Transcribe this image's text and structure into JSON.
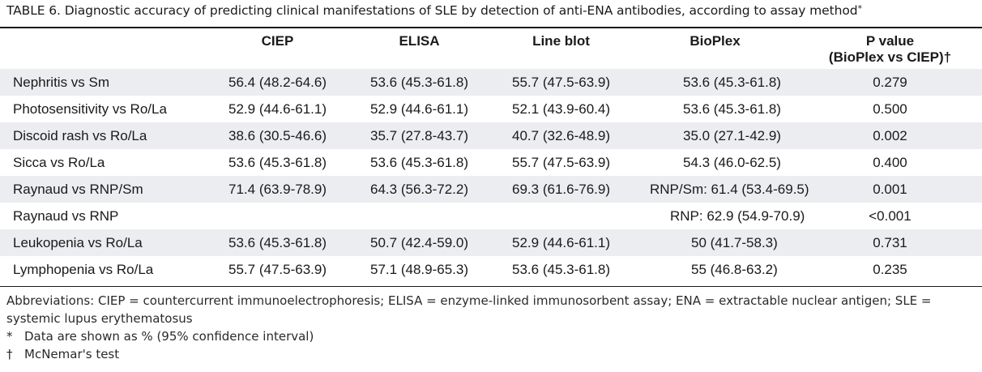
{
  "caption": {
    "label": "TABLE 6.",
    "text": "Diagnostic accuracy of predicting clinical manifestations of SLE by detection of anti-ENA antibodies, according to assay method",
    "mark": "*"
  },
  "table": {
    "headers": {
      "row_label": "",
      "ciep": "CIEP",
      "elisa": "ELISA",
      "line_blot": "Line blot",
      "bioplex": "BioPlex",
      "p_value_line1": "P value",
      "p_value_line2": "(BioPlex vs CIEP)†"
    },
    "rows": [
      {
        "label": "Nephritis vs Sm",
        "ciep": "56.4 (48.2-64.6)",
        "elisa": "53.6 (45.3-61.8)",
        "line_blot": "55.7 (47.5-63.9)",
        "bioplex": "53.6 (45.3-61.8)",
        "p": "0.279"
      },
      {
        "label": "Photosensitivity vs Ro/La",
        "ciep": "52.9 (44.6-61.1)",
        "elisa": "52.9 (44.6-61.1)",
        "line_blot": "52.1 (43.9-60.4)",
        "bioplex": "53.6 (45.3-61.8)",
        "p": "0.500"
      },
      {
        "label": "Discoid rash vs Ro/La",
        "ciep": "38.6 (30.5-46.6)",
        "elisa": "35.7 (27.8-43.7)",
        "line_blot": "40.7 (32.6-48.9)",
        "bioplex": "35.0 (27.1-42.9)",
        "p": "0.002"
      },
      {
        "label": "Sicca vs Ro/La",
        "ciep": "53.6 (45.3-61.8)",
        "elisa": "53.6 (45.3-61.8)",
        "line_blot": "55.7 (47.5-63.9)",
        "bioplex": "54.3 (46.0-62.5)",
        "p": "0.400"
      },
      {
        "label": "Raynaud vs RNP/Sm",
        "ciep": "71.4 (63.9-78.9)",
        "elisa": "64.3 (56.3-72.2)",
        "line_blot": "69.3 (61.6-76.9)",
        "bioplex": "RNP/Sm: 61.4 (53.4-69.5)",
        "p": "0.001"
      },
      {
        "label": "Raynaud vs RNP",
        "ciep": "",
        "elisa": "",
        "line_blot": "",
        "bioplex": "RNP: 62.9 (54.9-70.9)",
        "p": "<0.001"
      },
      {
        "label": "Leukopenia vs Ro/La",
        "ciep": "53.6 (45.3-61.8)",
        "elisa": "50.7 (42.4-59.0)",
        "line_blot": "52.9 (44.6-61.1)",
        "bioplex": "50 (41.7-58.3)",
        "p": "0.731"
      },
      {
        "label": "Lymphopenia vs Ro/La",
        "ciep": "55.7 (47.5-63.9)",
        "elisa": "57.1 (48.9-65.3)",
        "line_blot": "53.6 (45.3-61.8)",
        "bioplex": "55 (46.8-63.2)",
        "p": "0.235"
      }
    ]
  },
  "footnotes": {
    "abbreviations_line1": "Abbreviations: CIEP = countercurrent immunoelectrophoresis; ELISA = enzyme-linked immunosorbent assay; ENA = extractable nuclear antigen; SLE =",
    "abbreviations_line2": "systemic lupus erythematosus",
    "note1_symbol": "*",
    "note1_text": "Data are shown as % (95% confidence interval)",
    "note2_symbol": "†",
    "note2_text": "McNemar's test"
  },
  "colors": {
    "row_shade": "#ecedf0",
    "rule": "#1a1a1a",
    "text": "#1a1a1a"
  }
}
